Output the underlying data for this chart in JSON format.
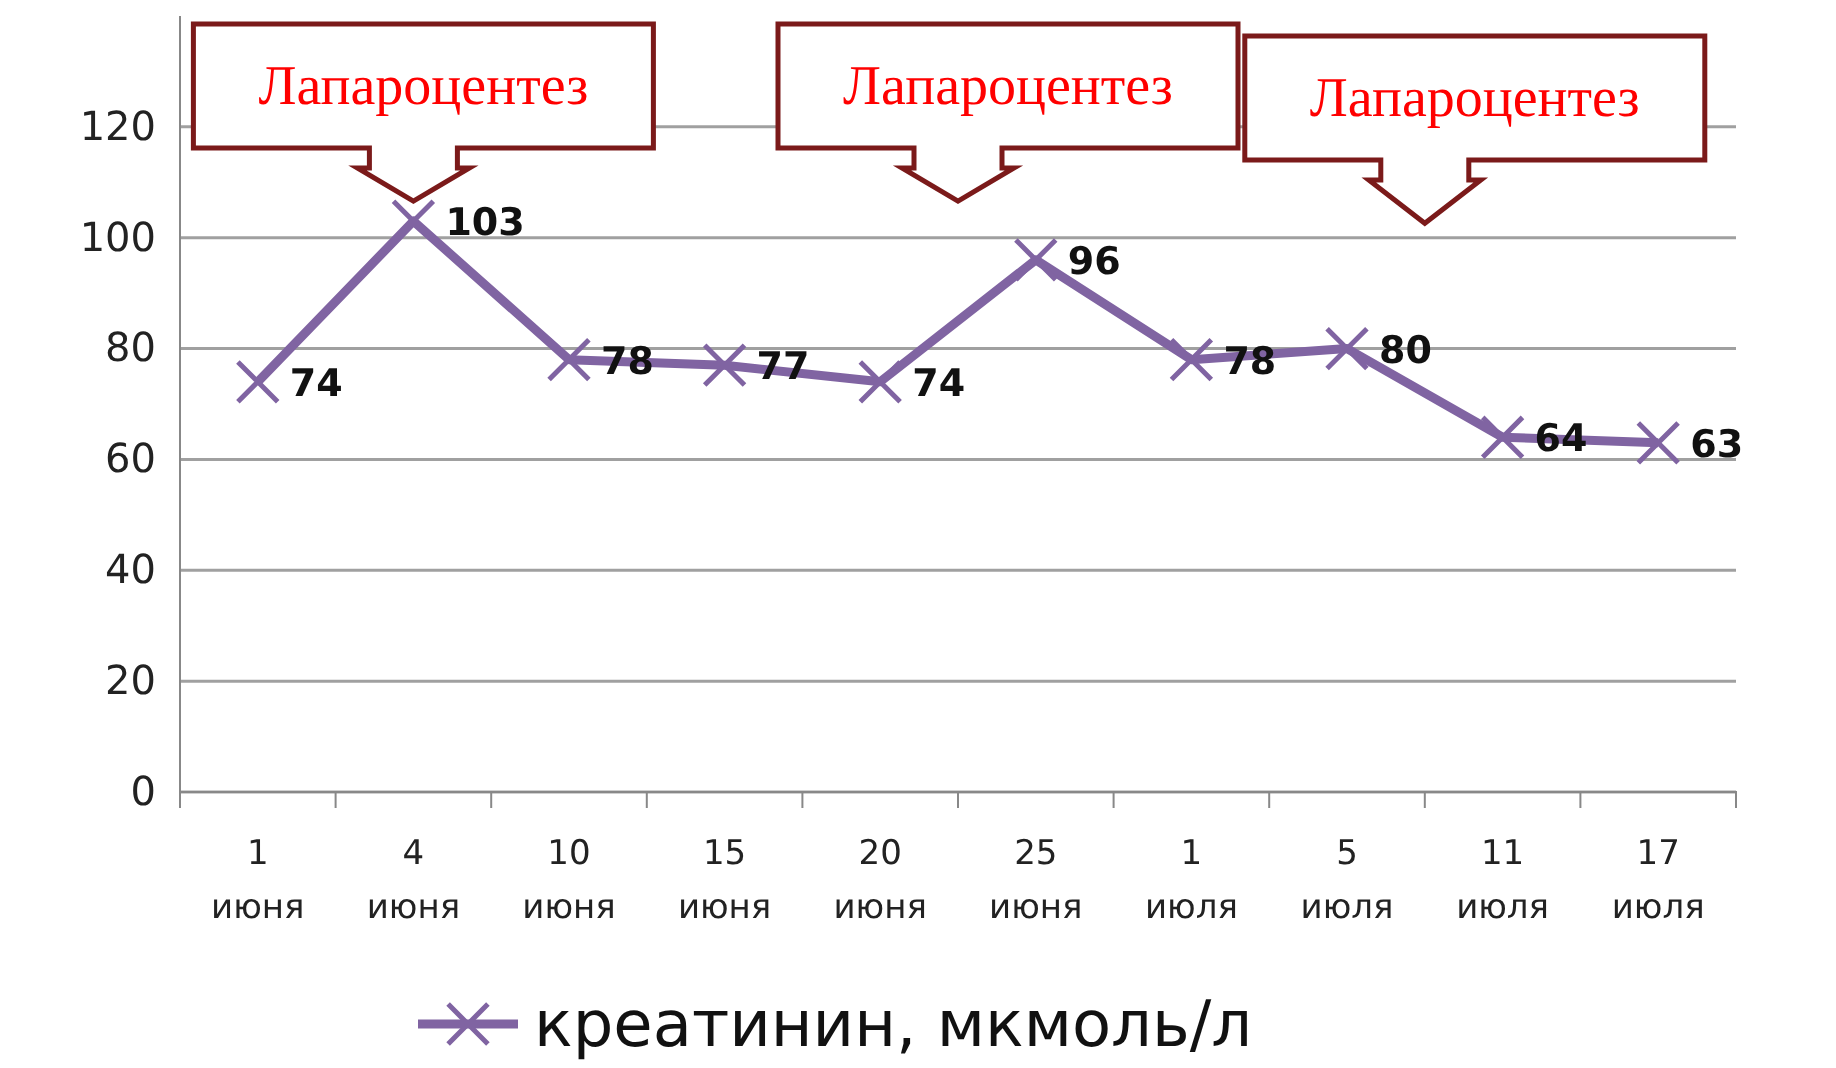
{
  "chart_data": {
    "type": "line",
    "categories": [
      "1 июня",
      "4 июня",
      "10 июня",
      "15 июня",
      "20 июня",
      "25 июня",
      "1 июля",
      "5 июля",
      "11 июля",
      "17 июля"
    ],
    "series": [
      {
        "name": "креатинин, мкмоль/л",
        "color": "#8064a2",
        "values": [
          74,
          103,
          78,
          77,
          74,
          96,
          78,
          80,
          64,
          63
        ]
      }
    ],
    "ylim": [
      0,
      140
    ],
    "yticks": [
      0,
      20,
      40,
      60,
      80,
      100,
      120
    ],
    "grid": "y",
    "legend": "bottom",
    "marker": "cross",
    "line_style": "solid",
    "data_labels": true,
    "annotations": [
      "Лапароцентез",
      "Лапароцентез",
      "Лапароцентез"
    ]
  }
}
